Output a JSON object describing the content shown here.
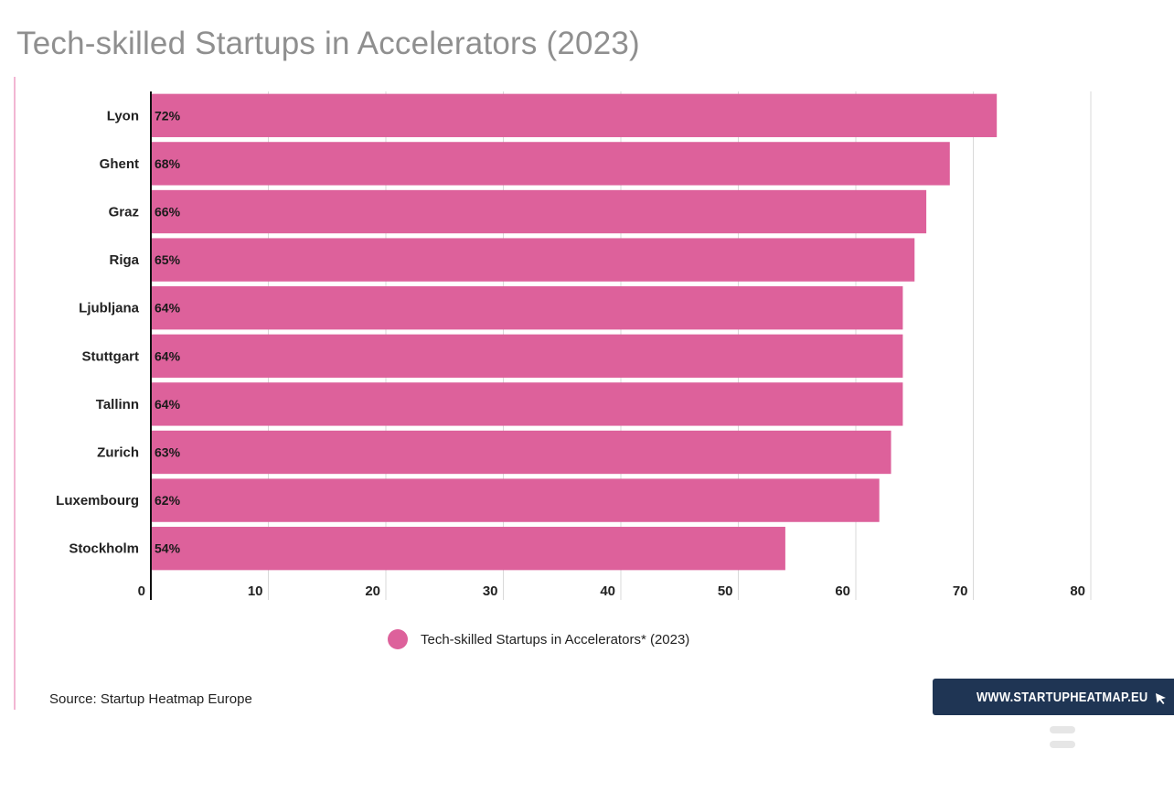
{
  "chart_data": {
    "type": "bar",
    "orientation": "horizontal",
    "title": "Tech-skilled Startups in Accelerators (2023)",
    "categories": [
      "Lyon",
      "Ghent",
      "Graz",
      "Riga",
      "Ljubljana",
      "Stuttgart",
      "Tallinn",
      "Zurich",
      "Luxembourg",
      "Stockholm"
    ],
    "series": [
      {
        "name": "Tech-skilled Startups in Accelerators* (2023)",
        "values": [
          72,
          68,
          66,
          65,
          64,
          64,
          64,
          63,
          62,
          54
        ],
        "labels": [
          "72%",
          "68%",
          "66%",
          "65%",
          "64%",
          "64%",
          "64%",
          "63%",
          "62%",
          "54%"
        ]
      }
    ],
    "x_ticks": [
      "0",
      "10",
      "20",
      "30",
      "40",
      "50",
      "60",
      "70",
      "80"
    ],
    "xlim": [
      0,
      80
    ],
    "grid": true,
    "legend_position": "bottom",
    "bar_color": "#dd619b"
  },
  "source": "Source: Startup Heatmap Europe",
  "brand": {
    "text": "WWW.STARTUPHEATMAP.EU",
    "cursor_icon": "cursor-icon",
    "menu_icon": "hamburger-icon"
  },
  "colors": {
    "title": "#8f8f8f",
    "accent_rule": "#f2b6d3",
    "badge": "#1f3554"
  }
}
